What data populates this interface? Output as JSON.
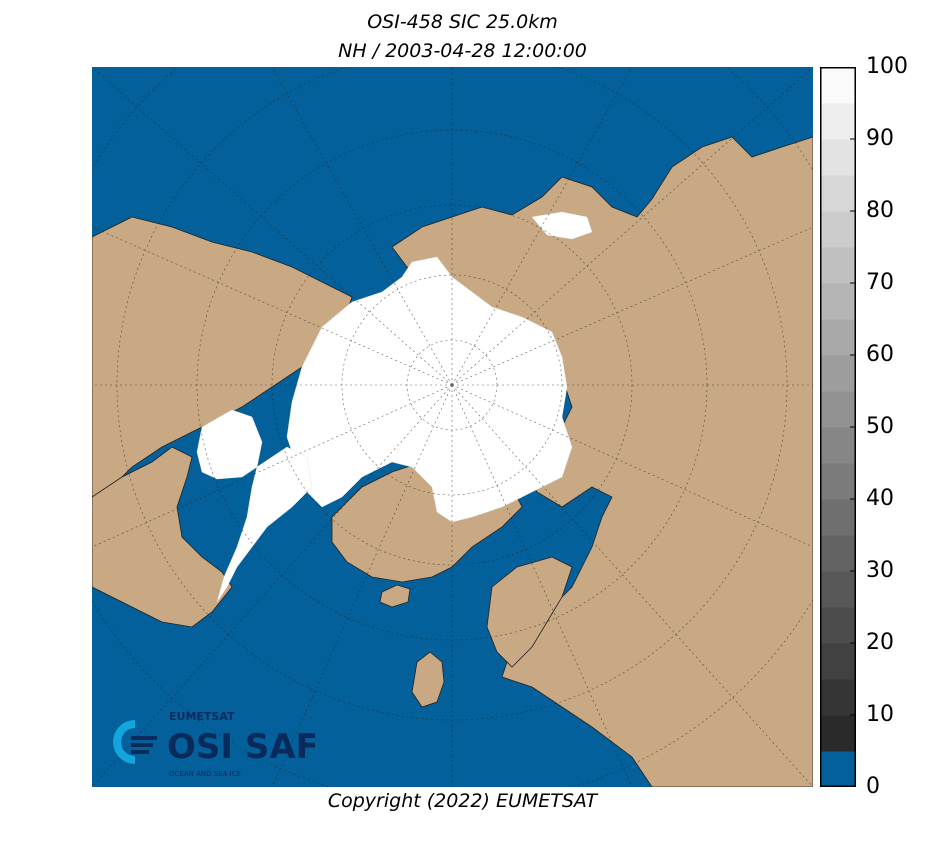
{
  "title": {
    "line1": "OSI-458 SIC 25.0km",
    "line2": "NH / 2003-04-28 12:00:00"
  },
  "copyright": "Copyright (2022)  EUMETSAT",
  "logo": {
    "org": "EUMETSAT",
    "brand": "OSI SAF",
    "tagline": "OCEAN AND SEA ICE"
  },
  "colorbar": {
    "min": 0,
    "max": 100,
    "tick_labels": [
      "100",
      "90",
      "80",
      "70",
      "60",
      "50",
      "40",
      "30",
      "20",
      "10",
      "0"
    ],
    "ocean_color": "#03609a",
    "land_color": "#c9a983",
    "ice_color": "#ffffff",
    "frame_color": "#000000"
  }
}
